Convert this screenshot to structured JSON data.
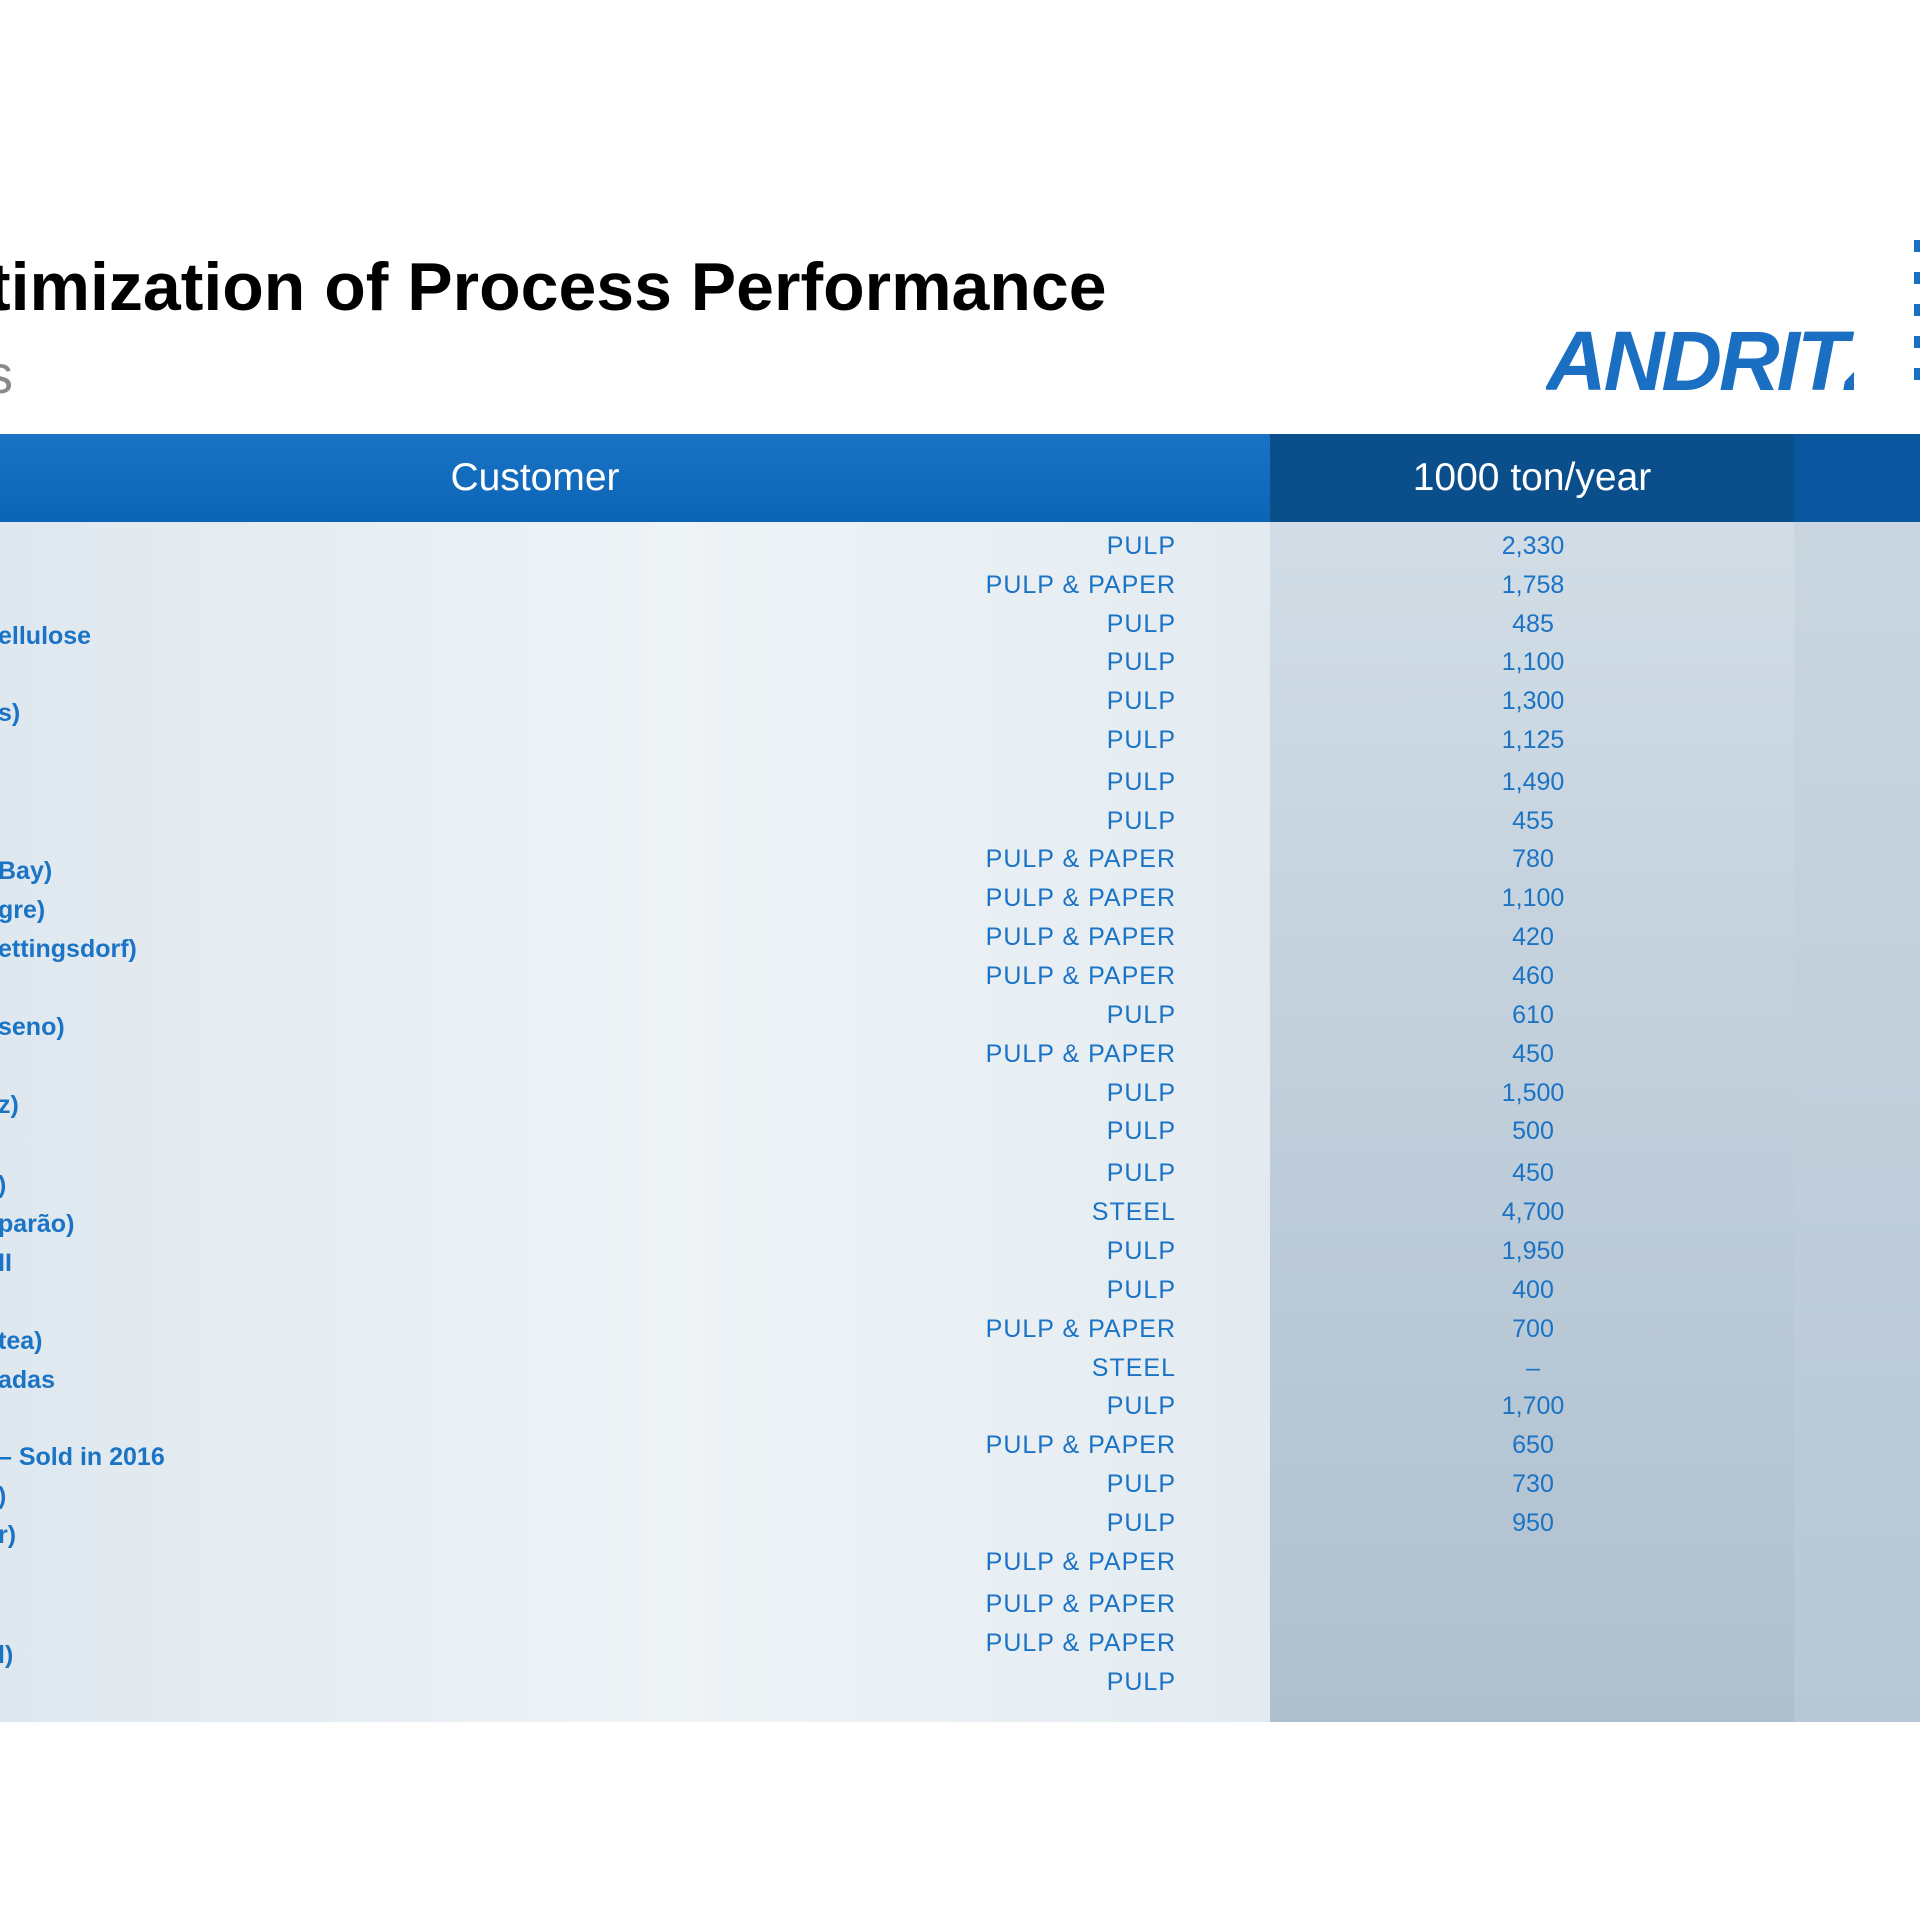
{
  "header": {
    "title": "timization of Process Performance",
    "subtitle": "s",
    "logo_text": "ANDRITZ"
  },
  "table": {
    "columns": [
      "Customer",
      "1000 ton/year"
    ],
    "rows": [
      {
        "name": "",
        "type": "PULP",
        "value": "2,330"
      },
      {
        "name": "",
        "type": "PULP & PAPER",
        "value": "1,758"
      },
      {
        "name": "ellulose",
        "type": "PULP",
        "value": "485"
      },
      {
        "name": "",
        "type": "PULP",
        "value": "1,100"
      },
      {
        "name": "s)",
        "type": "PULP",
        "value": "1,300"
      },
      {
        "name": "",
        "type": "PULP",
        "value": "1,125"
      },
      {
        "name": "",
        "type": "PULP",
        "value": "1,490"
      },
      {
        "name": "",
        "type": "PULP",
        "value": "455"
      },
      {
        "name": "Bay)",
        "type": "PULP & PAPER",
        "value": "780"
      },
      {
        "name": "gre)",
        "type": "PULP & PAPER",
        "value": "1,100"
      },
      {
        "name": "ettingsdorf)",
        "type": "PULP & PAPER",
        "value": "420"
      },
      {
        "name": "",
        "type": "PULP & PAPER",
        "value": "460"
      },
      {
        "name": "seno)",
        "type": "PULP",
        "value": "610"
      },
      {
        "name": "",
        "type": "PULP & PAPER",
        "value": "450"
      },
      {
        "name": "z)",
        "type": "PULP",
        "value": "1,500"
      },
      {
        "name": "",
        "type": "PULP",
        "value": "500"
      },
      {
        "name": ")",
        "type": "PULP",
        "value": "450"
      },
      {
        "name": "parão)",
        "type": "STEEL",
        "value": "4,700"
      },
      {
        "name": "II",
        "type": "PULP",
        "value": "1,950"
      },
      {
        "name": "",
        "type": "PULP",
        "value": "400"
      },
      {
        "name": "tea)",
        "type": "PULP & PAPER",
        "value": "700"
      },
      {
        "name": "adas",
        "type": "STEEL",
        "value": "–"
      },
      {
        "name": "",
        "type": "PULP",
        "value": "1,700"
      },
      {
        "name": "– Sold in 2016",
        "type": "PULP & PAPER",
        "value": "650"
      },
      {
        "name": ")",
        "type": "PULP",
        "value": "730"
      },
      {
        "name": "r)",
        "type": "PULP",
        "value": "950"
      },
      {
        "name": "",
        "type": "PULP & PAPER",
        "value": ""
      },
      {
        "name": "",
        "type": "PULP & PAPER",
        "value": ""
      },
      {
        "name": "l)",
        "type": "PULP & PAPER",
        "value": ""
      },
      {
        "name": "",
        "type": "PULP",
        "value": ""
      }
    ]
  },
  "colors": {
    "accent_blue": "#1a73c5",
    "header_dark": "#0a4f8c"
  }
}
